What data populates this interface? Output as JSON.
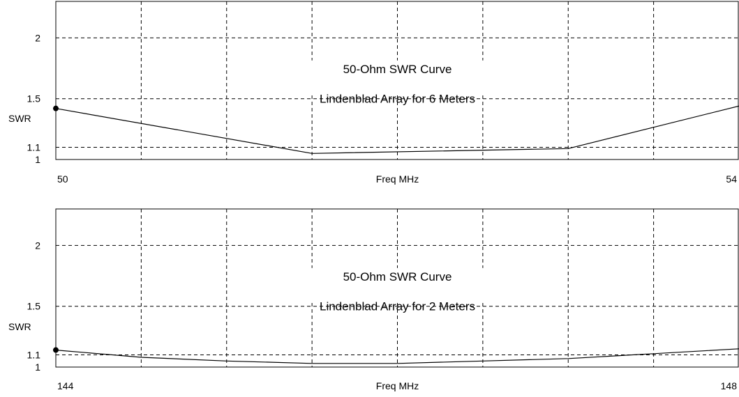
{
  "chart_data": [
    {
      "type": "line",
      "title": "50-Ohm SWR Curve",
      "subtitle": "Lindenblad Array for 6 Meters",
      "xlabel": "Freq MHz",
      "ylabel": "SWR",
      "xlim": [
        50,
        54
      ],
      "ylim": [
        1,
        2.3
      ],
      "x_tick_labels": [
        "50",
        "54"
      ],
      "y_ticks": [
        "1",
        "1.1",
        "1.5",
        "2"
      ],
      "grid": true,
      "series": [
        {
          "x": [
            50,
            51.5,
            53,
            54
          ],
          "y": [
            1.42,
            1.05,
            1.09,
            1.44
          ]
        }
      ]
    },
    {
      "type": "line",
      "title": "50-Ohm SWR Curve",
      "subtitle": "Lindenblad Array for 2 Meters",
      "xlabel": "Freq MHz",
      "ylabel": "SWR",
      "xlim": [
        144,
        148
      ],
      "ylim": [
        1,
        2.3
      ],
      "x_tick_labels": [
        "144",
        "148"
      ],
      "y_ticks": [
        "1",
        "1.1",
        "1.5",
        "2"
      ],
      "grid": true,
      "series": [
        {
          "x": [
            144,
            144.5,
            145,
            145.5,
            146,
            146.5,
            147,
            147.5,
            148
          ],
          "y": [
            1.14,
            1.08,
            1.05,
            1.03,
            1.03,
            1.05,
            1.07,
            1.11,
            1.15
          ]
        }
      ]
    }
  ]
}
